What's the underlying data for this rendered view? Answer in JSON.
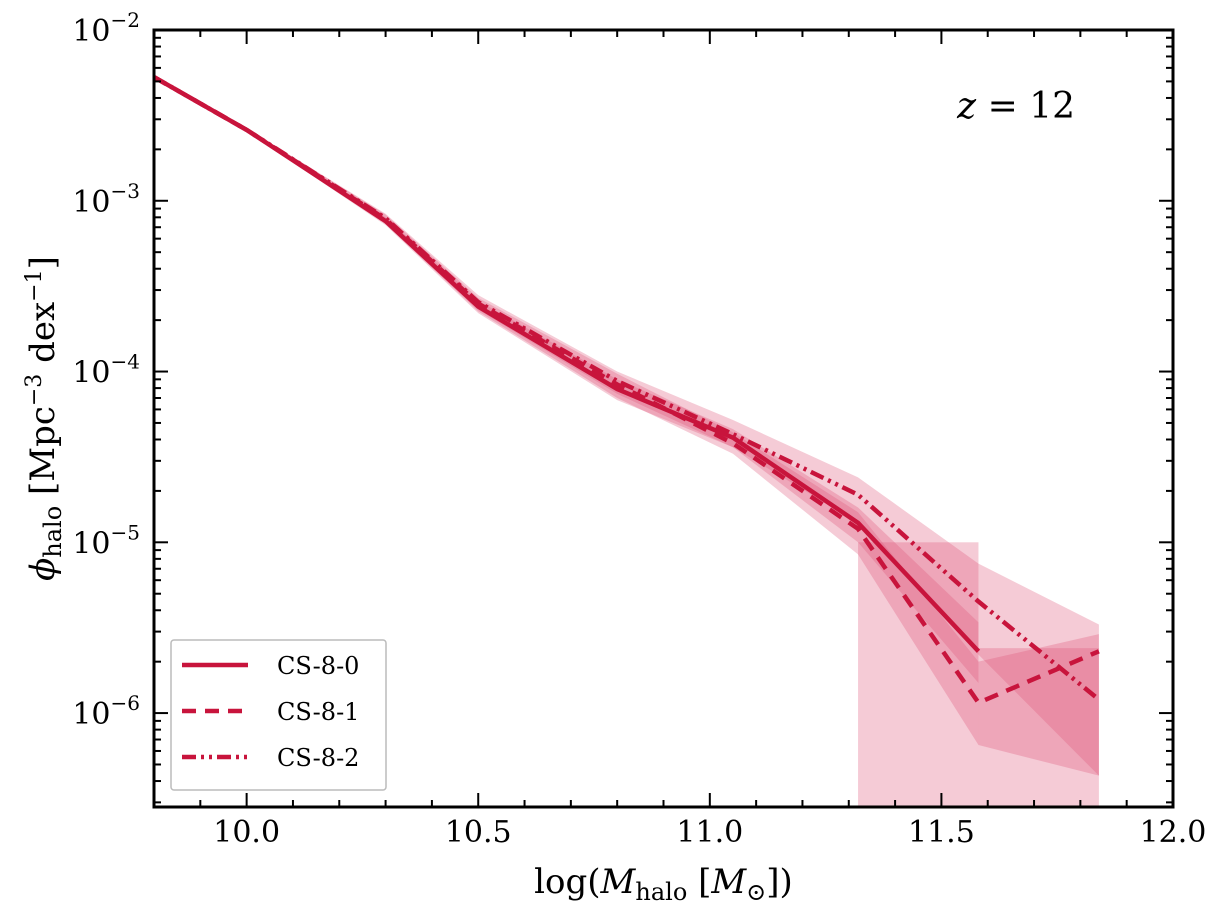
{
  "chart_data": {
    "type": "line",
    "title": "",
    "xlabel_parts": [
      "log(",
      "M",
      "halo",
      " [",
      "M",
      "⊙",
      "])"
    ],
    "ylabel_parts": [
      "ϕ",
      "halo",
      " [Mpc",
      "−3",
      " dex",
      "−1",
      "]"
    ],
    "xlim": [
      9.8,
      12.0
    ],
    "ylim_log10": [
      -6.55,
      -2.0
    ],
    "log_y": true,
    "x_ticks": [
      10.0,
      10.5,
      11.0,
      11.5,
      12.0
    ],
    "x_tick_labels": [
      "10.0",
      "10.5",
      "11.0",
      "11.5",
      "12.0"
    ],
    "y_ticks": [
      {
        "exp": -6,
        "base": "10",
        "sup": "−6"
      },
      {
        "exp": -5,
        "base": "10",
        "sup": "−5"
      },
      {
        "exp": -4,
        "base": "10",
        "sup": "−4"
      },
      {
        "exp": -3,
        "base": "10",
        "sup": "−3"
      },
      {
        "exp": -2,
        "base": "10",
        "sup": "−2"
      }
    ],
    "annotation": {
      "var": "z",
      "eq": " = 12"
    },
    "color": "#c8143c",
    "band_color": "#de5476",
    "series": [
      {
        "name": "CS-8-0",
        "style": "solid",
        "x": [
          9.8,
          10.0,
          10.3,
          10.5,
          10.8,
          11.05,
          11.32,
          11.58
        ],
        "y": [
          0.0053,
          0.0026,
          0.00076,
          0.00024,
          7.9e-05,
          4.1e-05,
          1.3e-05,
          2.3e-06
        ]
      },
      {
        "name": "CS-8-1",
        "style": "dashed",
        "x": [
          9.8,
          10.0,
          10.3,
          10.5,
          10.8,
          11.05,
          11.32,
          11.58,
          11.84
        ],
        "y": [
          0.0053,
          0.0026,
          0.00078,
          0.00025,
          8.4e-05,
          3.8e-05,
          1.2e-05,
          1.15e-06,
          2.3e-06
        ]
      },
      {
        "name": "CS-8-2",
        "style": "dashdot",
        "x": [
          9.8,
          10.0,
          10.3,
          10.5,
          10.8,
          11.05,
          11.32,
          11.58,
          11.84
        ],
        "y": [
          0.0053,
          0.0026,
          0.00079,
          0.000255,
          8.8e-05,
          4.3e-05,
          1.9e-05,
          4.5e-06,
          1.2e-06
        ]
      }
    ],
    "bands": [
      {
        "x": [
          9.8,
          10.0,
          10.3,
          10.5,
          10.8,
          11.05,
          11.32,
          11.58
        ],
        "lo": [
          0.0052,
          0.00255,
          0.00072,
          0.00022,
          6.8e-05,
          3.6e-05,
          1e-05,
          1.5e-06
        ],
        "hi": [
          0.0054,
          0.00265,
          0.0008,
          0.00026,
          9e-05,
          4.6e-05,
          1.6e-05,
          3.4e-06
        ]
      },
      {
        "x": [
          9.8,
          10.0,
          10.3,
          10.5,
          10.8,
          11.05,
          11.32,
          11.58,
          11.84
        ],
        "lo": [
          0.0052,
          0.00255,
          0.00073,
          0.000225,
          7e-05,
          3.3e-05,
          8.5e-06,
          6.5e-07,
          4.3e-07
        ],
        "hi": [
          0.0054,
          0.00265,
          0.00083,
          0.00027,
          9.7e-05,
          4.4e-05,
          1.5e-05,
          2e-06,
          2.9e-06
        ]
      },
      {
        "x": [
          9.8,
          10.0,
          10.3,
          10.5,
          10.8,
          11.05,
          11.32,
          11.58,
          11.84
        ],
        "lo": [
          0.0052,
          0.00255,
          0.00074,
          0.00023,
          7.4e-05,
          3.6e-05,
          1.3e-05,
          2.2e-06,
          4.3e-07
        ],
        "hi": [
          0.0054,
          0.00265,
          0.00084,
          0.00028,
          0.0001,
          5.2e-05,
          2.4e-05,
          7.5e-06,
          3.3e-06
        ]
      }
    ],
    "zero_bands": [
      {
        "x0": 11.32,
        "x1": 11.58,
        "top": 1e-05
      },
      {
        "x0": 11.58,
        "x1": 11.84,
        "top": 2.4e-06
      }
    ],
    "legend_position": "lower-left"
  }
}
